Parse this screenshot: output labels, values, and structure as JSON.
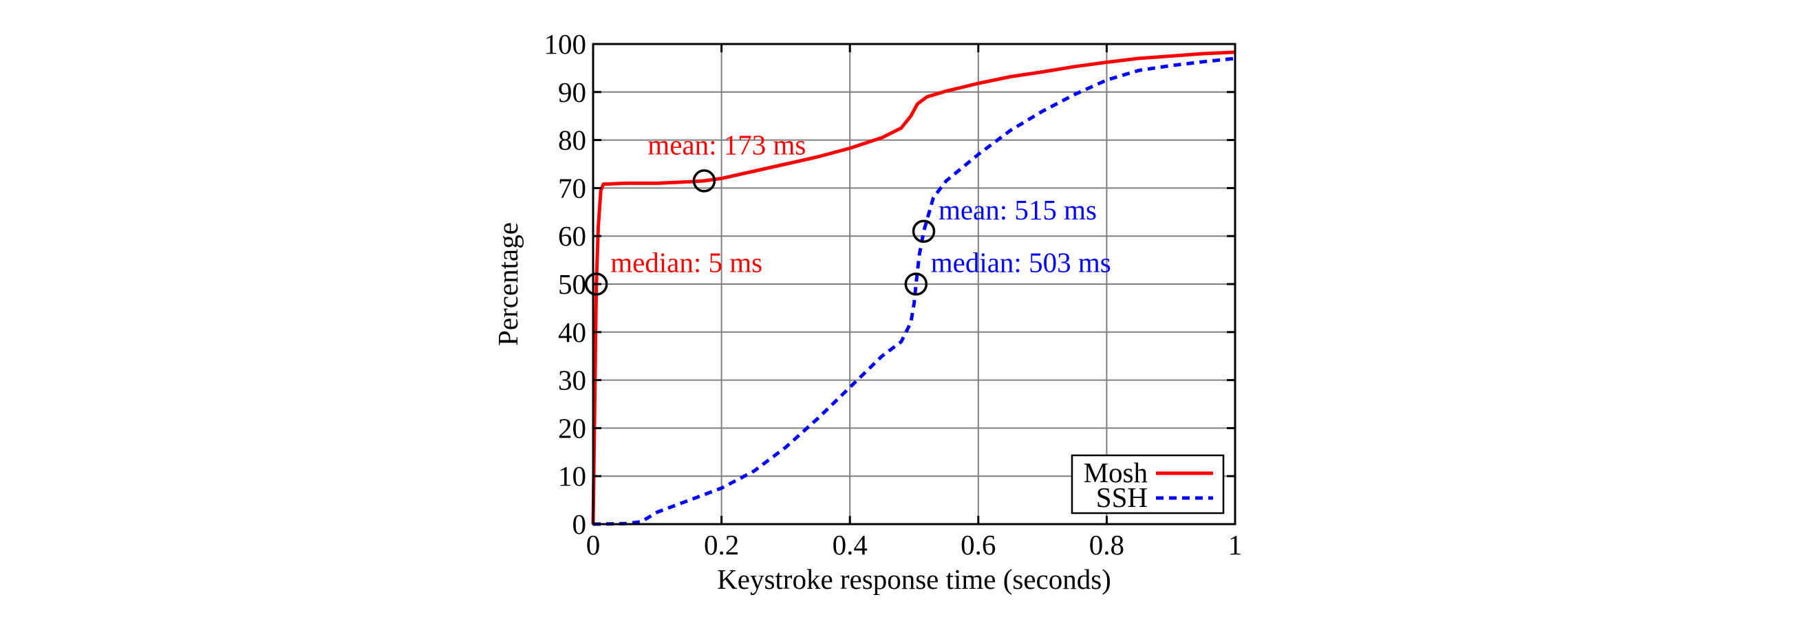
{
  "chart_data": {
    "type": "line",
    "title": "",
    "xlabel": "Keystroke response time (seconds)",
    "ylabel": "Percentage",
    "xlim": [
      0,
      1
    ],
    "ylim": [
      0,
      100
    ],
    "grid": true,
    "x_ticks": [
      0,
      0.2,
      0.4,
      0.6,
      0.8,
      1
    ],
    "x_tick_labels": [
      "0",
      "0.2",
      "0.4",
      "0.6",
      "0.8",
      "1"
    ],
    "y_ticks": [
      0,
      10,
      20,
      30,
      40,
      50,
      60,
      70,
      80,
      90,
      100
    ],
    "y_tick_labels": [
      "0",
      "10",
      "20",
      "30",
      "40",
      "50",
      "60",
      "70",
      "80",
      "90",
      "100"
    ],
    "legend_position": "bottom-right",
    "series": [
      {
        "name": "Mosh",
        "color": "#ff0000",
        "style": "solid",
        "points": [
          [
            0,
            0
          ],
          [
            0.002,
            20
          ],
          [
            0.004,
            40
          ],
          [
            0.005,
            50
          ],
          [
            0.008,
            62
          ],
          [
            0.012,
            69.5
          ],
          [
            0.016,
            70.8
          ],
          [
            0.05,
            71
          ],
          [
            0.1,
            71
          ],
          [
            0.15,
            71.3
          ],
          [
            0.173,
            71.5
          ],
          [
            0.2,
            72
          ],
          [
            0.25,
            73.5
          ],
          [
            0.3,
            75
          ],
          [
            0.35,
            76.5
          ],
          [
            0.4,
            78.3
          ],
          [
            0.45,
            80.5
          ],
          [
            0.48,
            82.5
          ],
          [
            0.495,
            85
          ],
          [
            0.505,
            87.5
          ],
          [
            0.52,
            89
          ],
          [
            0.55,
            90.2
          ],
          [
            0.6,
            91.8
          ],
          [
            0.65,
            93.2
          ],
          [
            0.7,
            94.2
          ],
          [
            0.75,
            95.3
          ],
          [
            0.8,
            96.2
          ],
          [
            0.85,
            97
          ],
          [
            0.9,
            97.5
          ],
          [
            0.95,
            98
          ],
          [
            1.0,
            98.3
          ]
        ]
      },
      {
        "name": "SSH",
        "color": "#0000ff",
        "style": "dashed",
        "points": [
          [
            0,
            0
          ],
          [
            0.05,
            0.1
          ],
          [
            0.075,
            0.5
          ],
          [
            0.1,
            2.5
          ],
          [
            0.15,
            5
          ],
          [
            0.2,
            7.5
          ],
          [
            0.25,
            11
          ],
          [
            0.3,
            16
          ],
          [
            0.35,
            22
          ],
          [
            0.4,
            28.5
          ],
          [
            0.45,
            35
          ],
          [
            0.48,
            38
          ],
          [
            0.495,
            42
          ],
          [
            0.5,
            46
          ],
          [
            0.503,
            50
          ],
          [
            0.508,
            56
          ],
          [
            0.515,
            61
          ],
          [
            0.53,
            68
          ],
          [
            0.55,
            71.5
          ],
          [
            0.6,
            77
          ],
          [
            0.65,
            82
          ],
          [
            0.7,
            86
          ],
          [
            0.75,
            89.5
          ],
          [
            0.8,
            92.5
          ],
          [
            0.85,
            94.5
          ],
          [
            0.9,
            95.5
          ],
          [
            0.95,
            96.3
          ],
          [
            1.0,
            97
          ]
        ]
      }
    ],
    "markers": [
      {
        "x": 0.005,
        "y": 50,
        "series": "Mosh"
      },
      {
        "x": 0.173,
        "y": 71.5,
        "series": "Mosh"
      },
      {
        "x": 0.503,
        "y": 50,
        "series": "SSH"
      },
      {
        "x": 0.515,
        "y": 61,
        "series": "SSH"
      }
    ],
    "annotations": [
      {
        "text": "mean: 173 ms",
        "color": "#ff0000",
        "at": [
          0.085,
          77
        ]
      },
      {
        "text": "median: 5 ms",
        "color": "#ff0000",
        "at": [
          0.027,
          52.5
        ]
      },
      {
        "text": "mean: 515 ms",
        "color": "#0000ff",
        "at": [
          0.538,
          63.5
        ]
      },
      {
        "text": "median: 503 ms",
        "color": "#0000ff",
        "at": [
          0.526,
          52.5
        ]
      }
    ]
  }
}
